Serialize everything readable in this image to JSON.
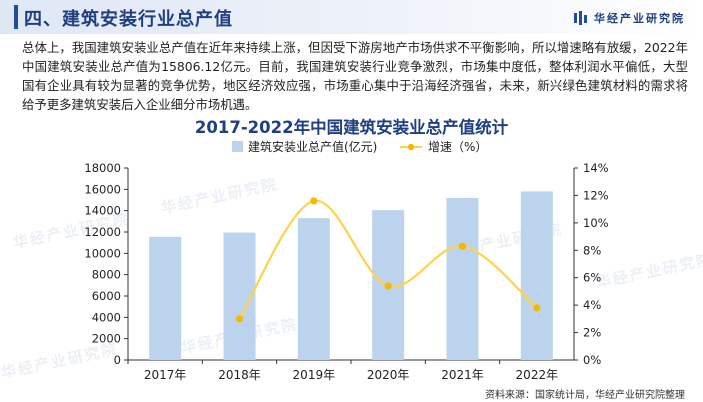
{
  "header": {
    "title": "四、建筑安装行业总产值",
    "logo_text": "华经产业研究院",
    "logo_icon": "bar-logo-icon"
  },
  "paragraph": "总体上，我国建筑安装业总产值在近年来持续上涨，但因受下游房地产市场供求不平衡影响，所以增速略有放缓，2022年中国建筑安装业总产值为15806.12亿元。目前，我国建筑安装行业竞争激烈，市场集中度低，整体利润水平偏低，大型国有企业具有较为显著的竞争优势，地区经济效应强，市场重心集中于沿海经济强省，未来，新兴绿色建筑材料的需求将给予更多建筑安装后入企业细分市场机遇。",
  "watermark": "华经产业研究院",
  "source": "资料来源：国家统计局，华经产业研究院整理",
  "colors": {
    "bar": "#bcd3ee",
    "line": "#ffd24a",
    "marker": "#f5b800",
    "title": "#1f3f80"
  },
  "chart_data": {
    "type": "bar",
    "title": "2017-2022年中国建筑安装业总产值统计",
    "categories": [
      "2017年",
      "2018年",
      "2019年",
      "2020年",
      "2021年",
      "2022年"
    ],
    "series": [
      {
        "name": "建筑安装业总产值(亿元)",
        "type": "bar",
        "axis": "left",
        "values": [
          11550,
          11950,
          13300,
          14050,
          15200,
          15806.12
        ]
      },
      {
        "name": "增速（%）",
        "type": "line",
        "axis": "right",
        "smooth": true,
        "values": [
          null,
          3.0,
          11.6,
          5.4,
          8.3,
          3.8
        ]
      }
    ],
    "ylim": [
      0,
      18000
    ],
    "yticks": [
      "0",
      "2000",
      "4000",
      "6000",
      "8000",
      "10000",
      "12000",
      "14000",
      "16000",
      "18000"
    ],
    "y2lim": [
      0,
      14
    ],
    "y2ticks": [
      "0%",
      "2%",
      "4%",
      "6%",
      "8%",
      "10%",
      "12%",
      "14%"
    ],
    "legend": "top-center",
    "grid": false
  }
}
